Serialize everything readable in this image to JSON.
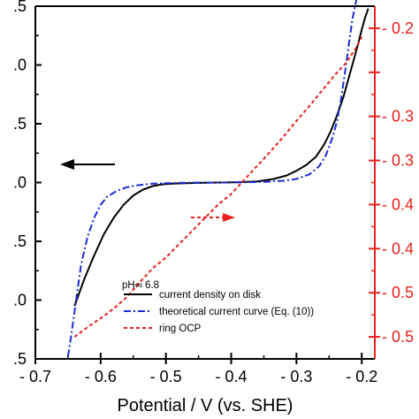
{
  "chart_data": {
    "type": "line",
    "xlabel": "Potential / V (vs. SHE)",
    "xlim": [
      -0.7,
      -0.18
    ],
    "xticks": [
      "- 0.7",
      "- 0.6",
      "- 0.5",
      "- 0.4",
      "- 0.3",
      "- 0.2"
    ],
    "left_axis": {
      "ylim": [
        -1.5,
        1.5
      ],
      "tick_labels": [
        ".5",
        ".0",
        ".5",
        ".0",
        ".5",
        ".0",
        ".5"
      ],
      "color": "#000000"
    },
    "right_axis": {
      "ylim": [
        -0.575,
        -0.175
      ],
      "tick_labels": [
        "- 0.2",
        "- 0.3",
        "- 0.3",
        "- 0.4",
        "- 0.4",
        "- 0.5",
        "- 0.5"
      ],
      "color": "#e8211f"
    },
    "annotation": "pH∞ 6.8",
    "series": [
      {
        "name": "current density on disk",
        "axis": "left",
        "color": "#000000",
        "dash": "solid",
        "x": [
          -0.64,
          -0.625,
          -0.61,
          -0.595,
          -0.58,
          -0.565,
          -0.55,
          -0.535,
          -0.52,
          -0.505,
          -0.49,
          -0.47,
          -0.45,
          -0.42,
          -0.39,
          -0.36,
          -0.335,
          -0.315,
          -0.3,
          -0.285,
          -0.27,
          -0.258,
          -0.248,
          -0.238,
          -0.228,
          -0.22,
          -0.212,
          -0.205,
          -0.2,
          -0.195,
          -0.19
        ],
        "y": [
          -1.05,
          -0.82,
          -0.62,
          -0.44,
          -0.3,
          -0.19,
          -0.11,
          -0.06,
          -0.03,
          -0.015,
          -0.01,
          -0.005,
          -0.003,
          0.0,
          0.003,
          0.01,
          0.03,
          0.06,
          0.1,
          0.15,
          0.22,
          0.32,
          0.43,
          0.57,
          0.73,
          0.89,
          1.05,
          1.19,
          1.3,
          1.4,
          1.48
        ]
      },
      {
        "name": "theoretical current curve (Eq. (10))",
        "axis": "left",
        "color": "#1a2ad6",
        "dash": "dashdot",
        "x": [
          -0.65,
          -0.645,
          -0.64,
          -0.63,
          -0.62,
          -0.61,
          -0.6,
          -0.59,
          -0.575,
          -0.56,
          -0.54,
          -0.52,
          -0.5,
          -0.45,
          -0.4,
          -0.35,
          -0.32,
          -0.3,
          -0.28,
          -0.265,
          -0.255,
          -0.245,
          -0.238,
          -0.232,
          -0.226,
          -0.22,
          -0.214,
          -0.208
        ],
        "y": [
          -1.48,
          -1.3,
          -1.1,
          -0.7,
          -0.46,
          -0.3,
          -0.19,
          -0.12,
          -0.07,
          -0.04,
          -0.02,
          -0.01,
          -0.005,
          0.0,
          0.0,
          0.005,
          0.015,
          0.03,
          0.07,
          0.14,
          0.23,
          0.38,
          0.52,
          0.7,
          0.92,
          1.17,
          1.4,
          1.56
        ]
      },
      {
        "name": "ring OCP",
        "axis": "right",
        "color": "#e8211f",
        "dash": "dashed",
        "x": [
          -0.64,
          -0.62,
          -0.6,
          -0.58,
          -0.56,
          -0.54,
          -0.52,
          -0.5,
          -0.48,
          -0.46,
          -0.44,
          -0.42,
          -0.4,
          -0.38,
          -0.36,
          -0.34,
          -0.32,
          -0.3,
          -0.28,
          -0.26,
          -0.24,
          -0.225,
          -0.21,
          -0.2
        ],
        "y": [
          -0.55,
          -0.539,
          -0.529,
          -0.518,
          -0.505,
          -0.488,
          -0.472,
          -0.46,
          -0.445,
          -0.43,
          -0.415,
          -0.4,
          -0.388,
          -0.372,
          -0.356,
          -0.34,
          -0.323,
          -0.305,
          -0.288,
          -0.27,
          -0.252,
          -0.24,
          -0.224,
          -0.21
        ]
      }
    ],
    "arrows": [
      {
        "points_to": "left axis",
        "color": "#000000",
        "style": "solid"
      },
      {
        "points_to": "right axis",
        "color": "#e8211f",
        "style": "dashed"
      }
    ],
    "legend": {
      "position": "bottom-right"
    },
    "grid": false
  }
}
